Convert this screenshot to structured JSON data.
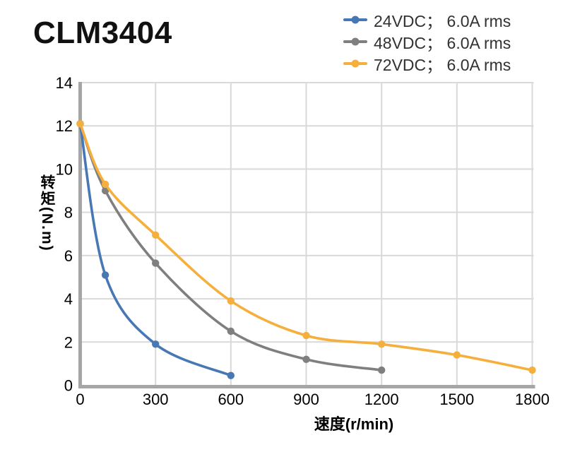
{
  "chart_data": {
    "type": "line",
    "title": "CLM3404",
    "xlabel": "速度(r/min)",
    "ylabel": "转矩(N.m)",
    "xlim": [
      0,
      1800
    ],
    "ylim": [
      0,
      14
    ],
    "x_ticks": [
      0,
      300,
      600,
      900,
      1200,
      1500,
      1800
    ],
    "y_ticks": [
      0,
      2,
      4,
      6,
      8,
      10,
      12,
      14
    ],
    "grid": true,
    "legend_position": "top-right",
    "smooth_lines": true,
    "series": [
      {
        "id": "24vdc",
        "name": "24VDC； 6.0A rms",
        "color": "#4878B4",
        "points": [
          [
            0,
            12.1
          ],
          [
            100,
            5.1
          ],
          [
            300,
            1.9
          ],
          [
            600,
            0.45
          ]
        ]
      },
      {
        "id": "48vdc",
        "name": "48VDC； 6.0A rms",
        "color": "#7F7F7F",
        "points": [
          [
            0,
            12.1
          ],
          [
            100,
            9.0
          ],
          [
            300,
            5.65
          ],
          [
            600,
            2.5
          ],
          [
            900,
            1.2
          ],
          [
            1200,
            0.7
          ]
        ]
      },
      {
        "id": "72vdc",
        "name": "72VDC； 6.0A rms",
        "color": "#F5AF3D",
        "points": [
          [
            0,
            12.1
          ],
          [
            100,
            9.3
          ],
          [
            300,
            6.95
          ],
          [
            600,
            3.9
          ],
          [
            900,
            2.3
          ],
          [
            1200,
            1.9
          ],
          [
            1500,
            1.4
          ],
          [
            1800,
            0.7
          ]
        ]
      }
    ],
    "colors": {
      "grid": "#D9D9D9",
      "axis": "#A6A6A6",
      "tick_text": "#000000",
      "legend_text": "#323232"
    }
  }
}
